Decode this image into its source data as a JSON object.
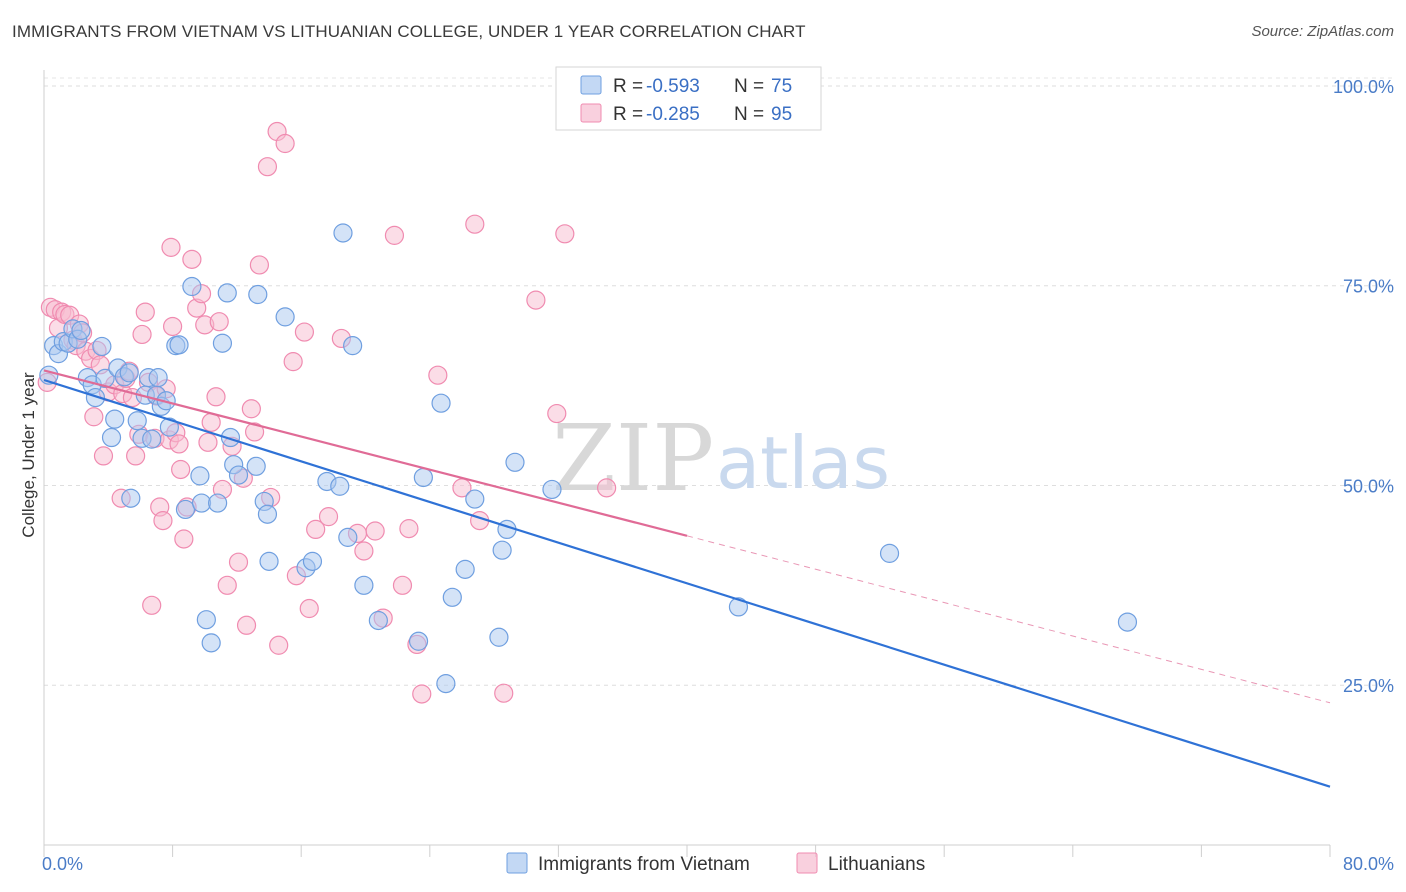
{
  "header": {
    "title": "IMMIGRANTS FROM VIETNAM VS LITHUANIAN COLLEGE, UNDER 1 YEAR CORRELATION CHART",
    "source": "Source: ZipAtlas.com"
  },
  "watermark": {
    "zip": "ZIP",
    "atlas": "atlas"
  },
  "legend": {
    "r_label": "R =",
    "n_label": "N =",
    "entries": [
      {
        "r": "-0.593",
        "n": "75",
        "color": "#6f9fe0"
      },
      {
        "r": "-0.285",
        "n": "95",
        "color": "#f08bb0"
      }
    ]
  },
  "colors": {
    "blue_fill": "#aac7f0",
    "blue_stroke": "#6f9fe0",
    "blue_line": "#2f72d6",
    "pink_fill": "#f7bcd0",
    "pink_stroke": "#f08bb0",
    "pink_line": "#e06b96"
  },
  "chart_data": {
    "type": "scatter",
    "title": "IMMIGRANTS FROM VIETNAM VS LITHUANIAN COLLEGE, UNDER 1 YEAR CORRELATION CHART",
    "xlabel": "",
    "ylabel": "College, Under 1 year",
    "xlim": [
      0,
      80
    ],
    "ylim": [
      5,
      102
    ],
    "x_tick_labels": [
      "0.0%",
      "80.0%"
    ],
    "y_ticks": [
      25,
      50,
      75,
      100
    ],
    "y_tick_labels": [
      "25.0%",
      "50.0%",
      "75.0%",
      "100.0%"
    ],
    "grid": true,
    "legend_position": "top-center",
    "series": [
      {
        "name": "Immigrants from Vietnam",
        "color": "#6f9fe0",
        "trend": {
          "x0": 0,
          "y0": 63.2,
          "x1": 80,
          "y1": 12.3
        },
        "points": [
          [
            0.3,
            63.8
          ],
          [
            0.6,
            67.5
          ],
          [
            0.9,
            66.5
          ],
          [
            1.2,
            68.0
          ],
          [
            1.5,
            67.8
          ],
          [
            1.8,
            69.6
          ],
          [
            2.1,
            68.3
          ],
          [
            2.3,
            69.4
          ],
          [
            2.7,
            63.5
          ],
          [
            3.0,
            62.6
          ],
          [
            3.2,
            61.0
          ],
          [
            3.6,
            67.4
          ],
          [
            3.8,
            63.4
          ],
          [
            4.2,
            56.0
          ],
          [
            4.4,
            58.3
          ],
          [
            4.6,
            64.7
          ],
          [
            5.0,
            63.6
          ],
          [
            5.3,
            64.1
          ],
          [
            5.4,
            48.4
          ],
          [
            5.8,
            58.1
          ],
          [
            6.1,
            55.9
          ],
          [
            6.3,
            61.3
          ],
          [
            6.5,
            63.5
          ],
          [
            6.7,
            55.8
          ],
          [
            7.0,
            61.3
          ],
          [
            7.1,
            63.5
          ],
          [
            7.3,
            59.9
          ],
          [
            7.6,
            60.6
          ],
          [
            7.8,
            57.3
          ],
          [
            8.2,
            67.5
          ],
          [
            8.4,
            67.6
          ],
          [
            8.8,
            47.0
          ],
          [
            9.2,
            74.9
          ],
          [
            9.7,
            51.2
          ],
          [
            9.8,
            47.8
          ],
          [
            10.1,
            33.2
          ],
          [
            10.4,
            30.3
          ],
          [
            10.8,
            47.8
          ],
          [
            11.1,
            67.8
          ],
          [
            11.4,
            74.1
          ],
          [
            11.6,
            56.0
          ],
          [
            11.8,
            52.6
          ],
          [
            12.1,
            51.3
          ],
          [
            13.2,
            52.4
          ],
          [
            13.3,
            73.9
          ],
          [
            13.7,
            48.0
          ],
          [
            13.9,
            46.4
          ],
          [
            14.0,
            40.5
          ],
          [
            15.0,
            71.1
          ],
          [
            16.3,
            39.7
          ],
          [
            16.7,
            40.5
          ],
          [
            17.6,
            50.5
          ],
          [
            18.4,
            49.9
          ],
          [
            18.6,
            81.6
          ],
          [
            18.9,
            43.5
          ],
          [
            19.2,
            67.5
          ],
          [
            19.9,
            37.5
          ],
          [
            20.8,
            33.1
          ],
          [
            23.3,
            30.5
          ],
          [
            23.6,
            51.0
          ],
          [
            24.7,
            60.3
          ],
          [
            25.0,
            25.2
          ],
          [
            25.4,
            36.0
          ],
          [
            26.2,
            39.5
          ],
          [
            26.8,
            48.3
          ],
          [
            28.3,
            31.0
          ],
          [
            28.5,
            41.9
          ],
          [
            28.8,
            44.5
          ],
          [
            29.3,
            52.9
          ],
          [
            31.6,
            49.5
          ],
          [
            43.2,
            34.8
          ],
          [
            52.6,
            41.5
          ],
          [
            67.4,
            32.9
          ]
        ]
      },
      {
        "name": "Lithuanians",
        "color": "#f08bb0",
        "trend": {
          "x0": 0,
          "y0": 64.4,
          "x1": 40,
          "y1": 43.7,
          "dash_x1": 80,
          "dash_y1": 22.8
        },
        "points": [
          [
            0.2,
            62.9
          ],
          [
            0.4,
            72.3
          ],
          [
            0.7,
            72.0
          ],
          [
            0.9,
            69.7
          ],
          [
            1.1,
            71.7
          ],
          [
            1.3,
            71.4
          ],
          [
            1.6,
            71.3
          ],
          [
            1.8,
            68.2
          ],
          [
            2.0,
            67.5
          ],
          [
            2.2,
            70.2
          ],
          [
            2.4,
            69.1
          ],
          [
            2.6,
            66.8
          ],
          [
            2.9,
            65.9
          ],
          [
            3.1,
            58.6
          ],
          [
            3.3,
            66.9
          ],
          [
            3.5,
            65.1
          ],
          [
            3.7,
            53.7
          ],
          [
            4.0,
            61.7
          ],
          [
            4.4,
            62.6
          ],
          [
            4.8,
            48.4
          ],
          [
            4.9,
            61.5
          ],
          [
            5.1,
            63.4
          ],
          [
            5.3,
            64.3
          ],
          [
            5.5,
            61.0
          ],
          [
            5.7,
            53.7
          ],
          [
            5.9,
            56.4
          ],
          [
            6.1,
            68.9
          ],
          [
            6.3,
            71.7
          ],
          [
            6.5,
            62.9
          ],
          [
            6.7,
            35.0
          ],
          [
            6.9,
            55.9
          ],
          [
            7.0,
            61.2
          ],
          [
            7.2,
            47.3
          ],
          [
            7.4,
            45.6
          ],
          [
            7.6,
            62.1
          ],
          [
            7.8,
            55.7
          ],
          [
            7.9,
            79.8
          ],
          [
            8.0,
            69.9
          ],
          [
            8.2,
            56.6
          ],
          [
            8.4,
            55.2
          ],
          [
            8.5,
            52.0
          ],
          [
            8.7,
            43.3
          ],
          [
            8.9,
            47.3
          ],
          [
            9.2,
            78.3
          ],
          [
            9.5,
            72.2
          ],
          [
            9.8,
            74.0
          ],
          [
            10.0,
            70.1
          ],
          [
            10.2,
            55.4
          ],
          [
            10.4,
            57.9
          ],
          [
            10.7,
            61.1
          ],
          [
            10.9,
            70.5
          ],
          [
            11.1,
            49.5
          ],
          [
            11.4,
            37.5
          ],
          [
            11.7,
            54.9
          ],
          [
            12.1,
            40.4
          ],
          [
            12.4,
            50.9
          ],
          [
            12.6,
            32.5
          ],
          [
            12.9,
            59.6
          ],
          [
            13.1,
            56.7
          ],
          [
            13.4,
            77.6
          ],
          [
            13.9,
            89.9
          ],
          [
            14.1,
            48.5
          ],
          [
            14.5,
            94.3
          ],
          [
            14.6,
            30.0
          ],
          [
            15.0,
            92.8
          ],
          [
            15.5,
            65.5
          ],
          [
            15.7,
            38.7
          ],
          [
            16.2,
            69.2
          ],
          [
            16.5,
            34.6
          ],
          [
            16.9,
            44.5
          ],
          [
            17.7,
            46.1
          ],
          [
            18.5,
            68.4
          ],
          [
            19.5,
            44.0
          ],
          [
            19.9,
            41.8
          ],
          [
            20.6,
            44.3
          ],
          [
            21.1,
            33.4
          ],
          [
            21.8,
            81.3
          ],
          [
            22.3,
            37.5
          ],
          [
            22.7,
            44.6
          ],
          [
            23.2,
            30.1
          ],
          [
            23.5,
            23.9
          ],
          [
            24.5,
            63.8
          ],
          [
            26.0,
            49.7
          ],
          [
            26.8,
            82.7
          ],
          [
            27.1,
            45.6
          ],
          [
            28.6,
            24.0
          ],
          [
            30.6,
            73.2
          ],
          [
            31.9,
            59.0
          ],
          [
            32.4,
            81.5
          ],
          [
            35.0,
            49.7
          ]
        ]
      }
    ]
  },
  "bottom_legend": [
    "Immigrants from Vietnam",
    "Lithuanians"
  ]
}
